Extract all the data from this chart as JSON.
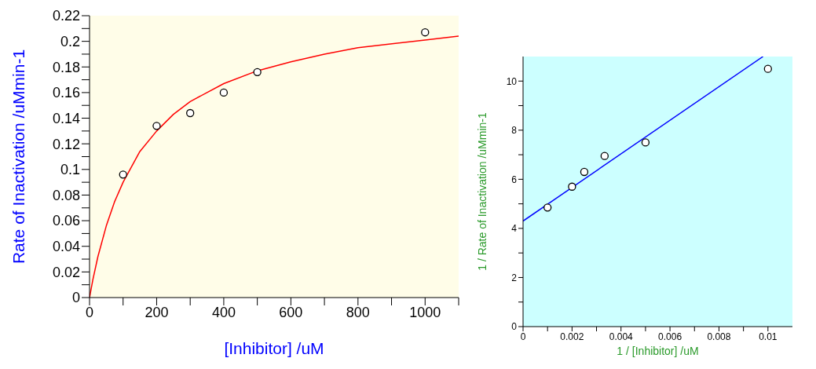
{
  "chart_data": [
    {
      "type": "scatter",
      "xlabel": "[Inhibitor] /uM",
      "ylabel": "Rate of Inactivation /uMmin-1",
      "xlim": [
        0,
        1100
      ],
      "ylim": [
        0,
        0.22
      ],
      "xticks": [
        0,
        {
          "value": 100,
          "label": null
        },
        200,
        {
          "value": 300,
          "label": null
        },
        400,
        {
          "value": 500,
          "label": null
        },
        600,
        {
          "value": 700,
          "label": null
        },
        800,
        {
          "value": 900,
          "label": null
        },
        1000,
        {
          "value": 1100,
          "label": null
        }
      ],
      "yticks": [
        0,
        {
          "value": 0.01,
          "label": null
        },
        0.02,
        {
          "value": 0.03,
          "label": null
        },
        0.04,
        {
          "value": 0.05,
          "label": null
        },
        0.06,
        {
          "value": 0.07,
          "label": null
        },
        0.08,
        {
          "value": 0.09,
          "label": null
        },
        0.1,
        {
          "value": 0.11,
          "label": null
        },
        0.12,
        {
          "value": 0.13,
          "label": null
        },
        0.14,
        {
          "value": 0.15,
          "label": null
        },
        0.16,
        {
          "value": 0.17,
          "label": null
        },
        0.18,
        {
          "value": 0.19,
          "label": null
        },
        0.2,
        {
          "value": 0.21,
          "label": null
        },
        0.22
      ],
      "grid": false,
      "series": [
        {
          "type": "line",
          "color": "#ff0000",
          "x": [
            0,
            10,
            25,
            50,
            75,
            100,
            150,
            200,
            250,
            300,
            400,
            500,
            600,
            700,
            800,
            1000,
            1100
          ],
          "values": [
            0,
            0.014,
            0.032,
            0.056,
            0.075,
            0.09,
            0.114,
            0.13,
            0.143,
            0.153,
            0.167,
            0.177,
            0.184,
            0.19,
            0.195,
            0.201,
            0.204
          ]
        },
        {
          "color": "#ffffff",
          "marker": "circle",
          "x": [
            100,
            200,
            300,
            400,
            500,
            1000
          ],
          "values": [
            0.096,
            0.134,
            0.144,
            0.16,
            0.176,
            0.207
          ]
        }
      ]
    },
    {
      "type": "scatter",
      "xlabel": "1 / [Inhibitor] /uM",
      "ylabel": "1 / Rate of Inactivation /uMmin-1",
      "xlim": [
        0,
        0.011
      ],
      "ylim": [
        0,
        11
      ],
      "xticks": [
        0,
        {
          "value": 0.001,
          "label": null
        },
        0.002,
        {
          "value": 0.003,
          "label": null
        },
        0.004,
        {
          "value": 0.005,
          "label": null
        },
        0.006,
        {
          "value": 0.007,
          "label": null
        },
        0.008,
        {
          "value": 0.009,
          "label": null
        },
        0.01
      ],
      "yticks": [
        0,
        {
          "value": 1,
          "label": null
        },
        2,
        {
          "value": 3,
          "label": null
        },
        4,
        {
          "value": 5,
          "label": null
        },
        6,
        {
          "value": 7,
          "label": null
        },
        8,
        {
          "value": 9,
          "label": null
        },
        10
      ],
      "grid": false,
      "series": [
        {
          "type": "line",
          "color": "#0000ff",
          "x": [
            0,
            0.0098
          ],
          "values": [
            4.3,
            11
          ]
        },
        {
          "color": "#ffffff",
          "marker": "circle",
          "x": [
            0.001,
            0.002,
            0.0025,
            0.00333,
            0.005,
            0.01
          ],
          "values": [
            4.85,
            5.7,
            6.3,
            6.95,
            7.5,
            10.5
          ]
        }
      ]
    }
  ]
}
